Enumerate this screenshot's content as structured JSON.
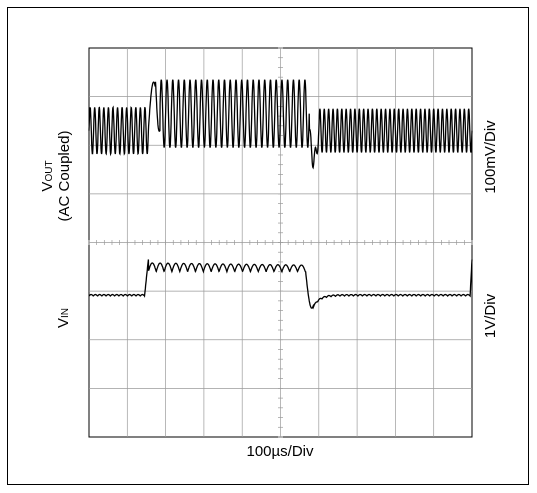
{
  "chart_data": {
    "type": "line",
    "title": "",
    "xlabel": "100µs/Div",
    "grid": true,
    "divisions": {
      "x": 10,
      "y": 8
    },
    "channels": [
      {
        "name": "VOUT",
        "axis_label_main": "V",
        "axis_label_sub": "OUT",
        "axis_label_line2": "(AC Coupled)",
        "scale_label": "100mV/Div",
        "center_div": 1.7,
        "segments": [
          {
            "t_start_div": 0.0,
            "t_end_div": 1.55,
            "cycles": 13,
            "amplitude_div": 0.48
          },
          {
            "t_start_div": 1.55,
            "t_end_div": 1.85,
            "event": "overshoot",
            "peak_div": 1.2
          },
          {
            "t_start_div": 1.85,
            "t_end_div": 5.75,
            "cycles": 26,
            "amplitude_div": 0.7
          },
          {
            "t_start_div": 5.75,
            "t_end_div": 6.0,
            "event": "dip",
            "min_div": -0.6
          },
          {
            "t_start_div": 6.0,
            "t_end_div": 10.0,
            "cycles": 35,
            "amplitude_div": 0.45
          }
        ]
      },
      {
        "name": "VIN",
        "axis_label_main": "V",
        "axis_label_sub": "IN",
        "scale_label": "1V/Div",
        "center_div": 5.1,
        "levels_div": {
          "low": 0.0,
          "high": 0.55
        },
        "segments": [
          {
            "t_start_div": 0.0,
            "t_end_div": 1.45,
            "level": "low",
            "ripple_cycles": 13,
            "ripple_div": 0.05
          },
          {
            "t_start_div": 1.45,
            "t_end_div": 1.55,
            "event": "step-up"
          },
          {
            "t_start_div": 1.55,
            "t_end_div": 5.65,
            "level": "high",
            "ripple_cycles": 20,
            "ripple_div": 0.18
          },
          {
            "t_start_div": 5.65,
            "t_end_div": 5.85,
            "event": "step-down"
          },
          {
            "t_start_div": 5.85,
            "t_end_div": 9.95,
            "level": "low",
            "ripple_cycles": 35,
            "ripple_div": 0.05
          },
          {
            "t_start_div": 9.95,
            "t_end_div": 10.0,
            "event": "step-up"
          }
        ]
      }
    ]
  }
}
